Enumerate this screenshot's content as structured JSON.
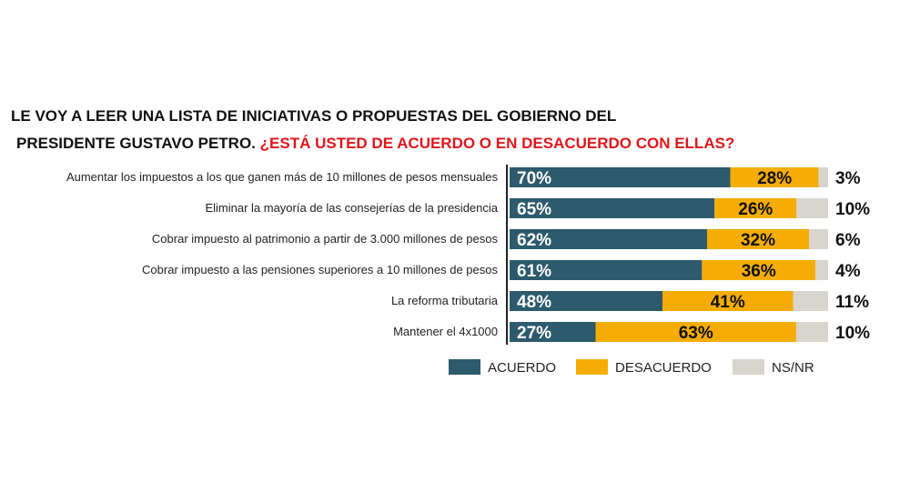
{
  "chart_data": {
    "type": "bar",
    "stacked": true,
    "orientation": "horizontal",
    "title_line1": "LE VOY A LEER UNA LISTA DE INICIATIVAS O PROPUESTAS DEL  GOBIERNO DEL",
    "title_line2_black": "PRESIDENTE GUSTAVO PETRO.",
    "title_line2_red": "¿ESTÁ USTED DE ACUERDO  O EN DESACUERDO CON ELLAS?",
    "categories": [
      "Aumentar los impuestos a los que ganen más de 10 millones de pesos mensuales",
      "Eliminar la mayoría de las consejerías de la presidencia",
      "Cobrar impuesto al patrimonio a partir de 3.000 millones de pesos",
      "Cobrar impuesto a las pensiones superiores a 10 millones de pesos",
      "La reforma tributaria",
      "Mantener el 4x1000"
    ],
    "series": [
      {
        "name": "ACUERDO",
        "color": "#2d5a6d",
        "values": [
          70,
          65,
          62,
          61,
          48,
          27
        ]
      },
      {
        "name": "DESACUERDO",
        "color": "#f5ad05",
        "values": [
          28,
          26,
          32,
          36,
          41,
          63
        ]
      },
      {
        "name": "NS/NR",
        "color": "#d8d5cf",
        "values": [
          3,
          10,
          6,
          4,
          11,
          10
        ]
      }
    ],
    "unit": "%",
    "legend": "bottom"
  }
}
